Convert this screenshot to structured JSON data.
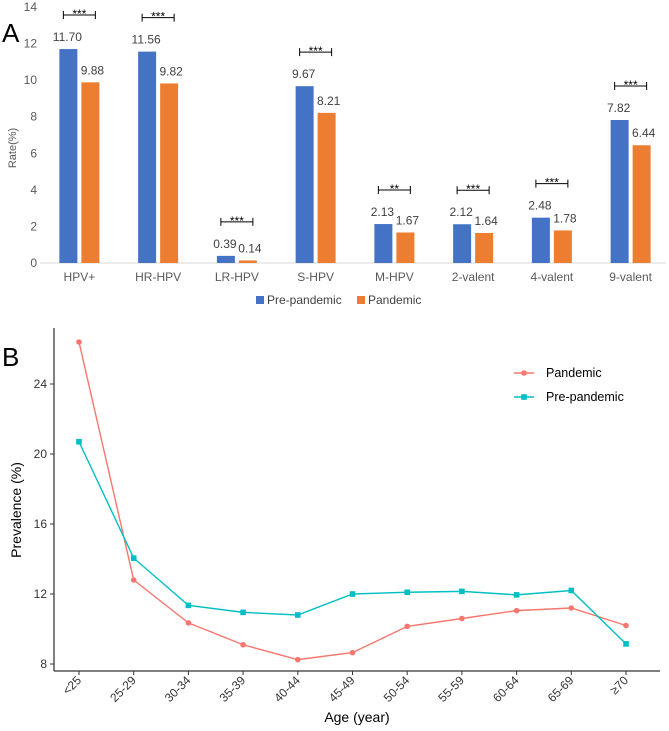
{
  "panel_a_letter": "A",
  "panel_b_letter": "B",
  "chart_data": [
    {
      "type": "bar",
      "ylabel": "Rate(%)",
      "ylim": [
        0,
        14
      ],
      "yticks": [
        "0",
        "2",
        "4",
        "6",
        "8",
        "10",
        "12",
        "14"
      ],
      "categories": [
        "HPV+",
        "HR-HPV",
        "LR-HPV",
        "S-HPV",
        "M-HPV",
        "2-valent",
        "4-valent",
        "9-valent"
      ],
      "series": [
        {
          "name": "Pre-pandemic",
          "color": "#4472C4",
          "values": [
            11.7,
            11.56,
            0.39,
            9.67,
            2.13,
            2.12,
            2.48,
            7.82
          ],
          "labels": [
            "11.70",
            "11.56",
            "0.39",
            "9.67",
            "2.13",
            "2.12",
            "2.48",
            "7.82"
          ]
        },
        {
          "name": "Pandemic",
          "color": "#ED7D31",
          "values": [
            9.88,
            9.82,
            0.14,
            8.21,
            1.67,
            1.64,
            1.78,
            6.44
          ],
          "labels": [
            "9.88",
            "9.82",
            "0.14",
            "8.21",
            "1.67",
            "1.64",
            "1.78",
            "6.44"
          ]
        }
      ],
      "significance": [
        "***",
        "***",
        "***",
        "***",
        "**",
        "***",
        "***",
        "***"
      ],
      "legend": [
        "Pre-pandemic",
        "Pandemic"
      ],
      "legend_position": "bottom"
    },
    {
      "type": "line",
      "xlabel": "Age (year)",
      "ylabel": "Prevalence (%)",
      "ylim": [
        7.6,
        27.2
      ],
      "yticks": [
        "8",
        "12",
        "16",
        "20",
        "24"
      ],
      "categories": [
        "<25",
        "25-29",
        "30-34",
        "35-39",
        "40-44",
        "45-49",
        "50-54",
        "55-59",
        "60-64",
        "65-69",
        "≥70"
      ],
      "series": [
        {
          "name": "Pandemic",
          "color": "#F8766D",
          "marker": "circle",
          "values": [
            26.4,
            12.8,
            10.35,
            9.1,
            8.25,
            8.65,
            10.15,
            10.6,
            11.05,
            11.2,
            10.2
          ]
        },
        {
          "name": "Pre-pandemic",
          "color": "#00BFC4",
          "marker": "square",
          "values": [
            20.7,
            14.05,
            11.35,
            10.95,
            10.8,
            12.0,
            12.1,
            12.15,
            11.95,
            12.2,
            9.15
          ]
        }
      ],
      "legend": [
        "Pandemic",
        "Pre-pandemic"
      ],
      "legend_position": "top-right"
    }
  ]
}
